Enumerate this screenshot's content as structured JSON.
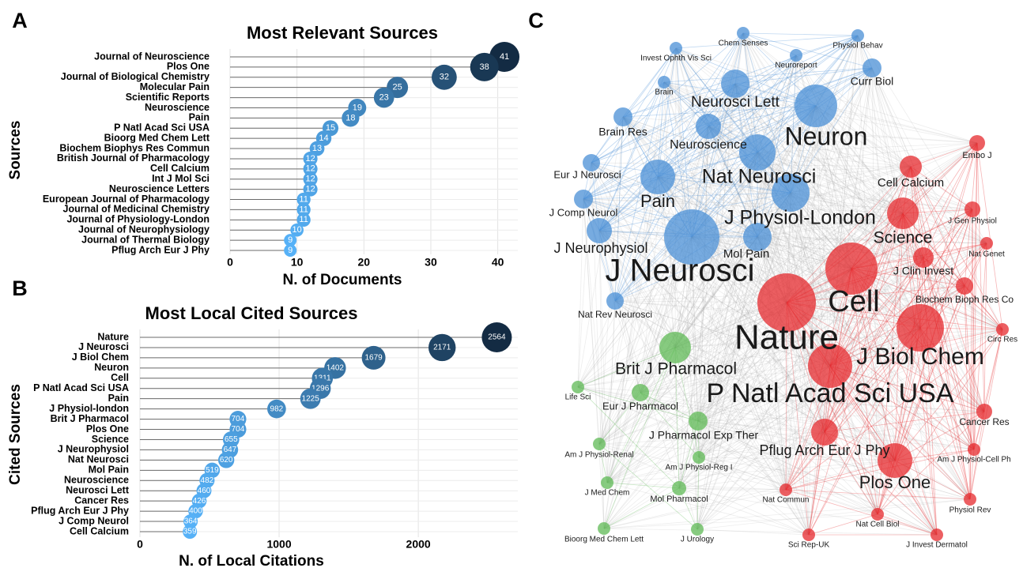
{
  "chart_data": [
    {
      "type": "lollipop",
      "panel_label": "A",
      "title": "Most Relevant Sources",
      "xlabel": "N. of Documents",
      "ylabel": "Sources",
      "categories": [
        "Journal of Neuroscience",
        "Plos One",
        "Journal of Biological Chemistry",
        "Molecular Pain",
        "Scientific Reports",
        "Neuroscience",
        "Pain",
        "P Natl Acad Sci USA",
        "Bioorg Med Chem Lett",
        "Biochem Biophys Res Commun",
        "British Journal of Pharmacology",
        "Cell Calcium",
        "Int J Mol Sci",
        "Neuroscience Letters",
        "European Journal of Pharmacology",
        "Journal of Medicinal Chemistry",
        "Journal of Physiology-London",
        "Journal of Neurophysiology",
        "Journal of Thermal Biology",
        "Pflug Arch Eur J Phy"
      ],
      "values": [
        41,
        38,
        32,
        25,
        23,
        19,
        18,
        15,
        14,
        13,
        12,
        12,
        12,
        12,
        11,
        11,
        11,
        10,
        9,
        9
      ],
      "xlim": [
        0,
        43
      ],
      "xticks": [
        0,
        10,
        20,
        30,
        40
      ],
      "grid": true,
      "colors": [
        "#56B1F7",
        "#132B43"
      ]
    },
    {
      "type": "lollipop",
      "panel_label": "B",
      "title": "Most Local Cited Sources",
      "xlabel": "N. of Local Citations",
      "ylabel": "Cited Sources",
      "categories": [
        "Nature",
        "J Neurosci",
        "J Biol Chem",
        "Neuron",
        "Cell",
        "P Natl Acad Sci USA",
        "Pain",
        "J Physiol-london",
        "Brit J Pharmacol",
        "Plos One",
        "Science",
        "J Neurophysiol",
        "Nat Neurosci",
        "Mol Pain",
        "Neuroscience",
        "Neurosci Lett",
        "Cancer Res",
        "Pflug Arch Eur J Phy",
        "J Comp Neurol",
        "Cell Calcium"
      ],
      "values": [
        2564,
        2171,
        1679,
        1402,
        1311,
        1296,
        1225,
        982,
        704,
        704,
        655,
        647,
        620,
        519,
        482,
        460,
        426,
        400,
        364,
        359
      ],
      "xlim": [
        0,
        2715
      ],
      "xticks": [
        0,
        1000,
        2000
      ],
      "grid": true,
      "colors": [
        "#56B1F7",
        "#132B43"
      ]
    },
    {
      "type": "network",
      "panel_label": "C",
      "clusters": [
        {
          "color": "#4a8fd6",
          "nodes": [
            "Chem Senses",
            "Physiol Behav",
            "Invest Ophth Vis Sci",
            "Neuroreport",
            "Curr Biol",
            "Brain",
            "Neurosci Lett",
            "Neuron",
            "Brain Res",
            "Neuroscience",
            "Eur J Neurosci",
            "Nat Neurosci",
            "Pain",
            "J Comp Neurol",
            "J Physiol-London",
            "J Neurophysiol",
            "J Neurosci",
            "Mol Pain",
            "Nat Rev Neurosci"
          ]
        },
        {
          "color": "#e52a2d",
          "nodes": [
            "Embo J",
            "Cell Calcium",
            "J Gen Physiol",
            "Science",
            "Nat Genet",
            "J Clin Invest",
            "Cell",
            "Biochem Bioph Res Co",
            "Nature",
            "J Biol Chem",
            "Circ Res",
            "P Natl Acad Sci USA",
            "Cancer Res",
            "Pflug Arch Eur J Phy",
            "Am J Physiol-Cell Ph",
            "Plos One",
            "Nat Commun",
            "Physiol Rev",
            "Nat Cell Biol",
            "Sci Rep-UK",
            "J Invest Dermatol"
          ]
        },
        {
          "color": "#5fba55",
          "nodes": [
            "Brit J Pharmacol",
            "Life Sci",
            "Eur J Pharmacol",
            "J Pharmacol Exp Ther",
            "Am J Physiol-Renal",
            "Am J Physiol-Reg I",
            "J Med Chem",
            "Mol Pharmacol",
            "Bioorg Med Chem Lett",
            "J Urology"
          ]
        }
      ]
    }
  ]
}
